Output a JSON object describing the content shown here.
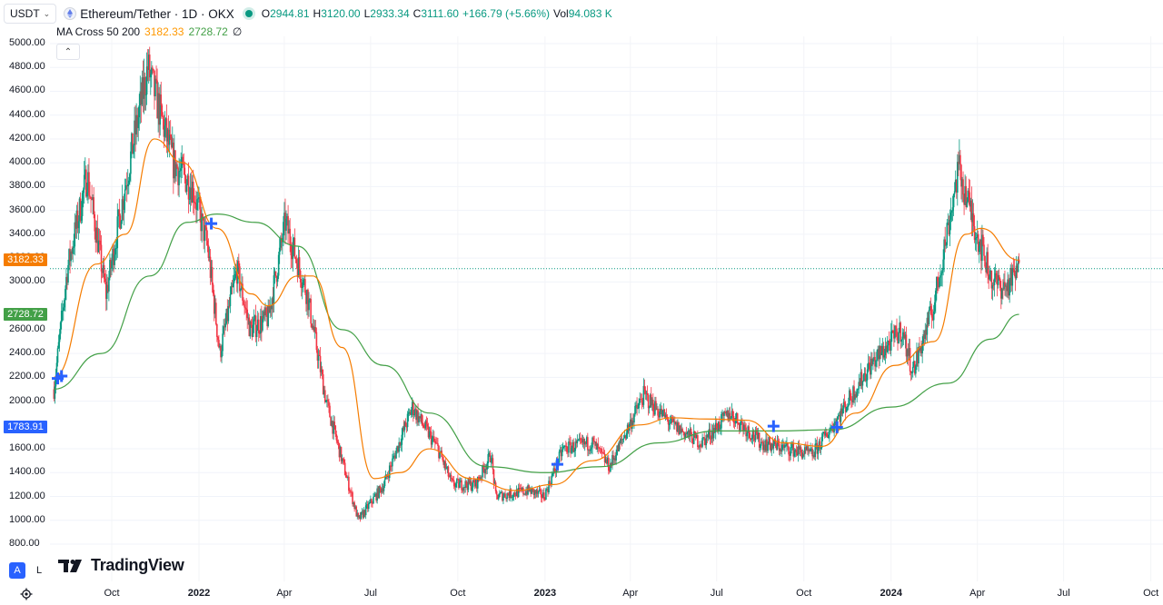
{
  "header": {
    "symbol_select": "USDT",
    "title": "Ethereum/Tether · 1D · OKX",
    "ohlc": [
      {
        "key": "O",
        "value": "2944.81"
      },
      {
        "key": "H",
        "value": "3120.00"
      },
      {
        "key": "L",
        "value": "2933.34"
      },
      {
        "key": "C",
        "value": "3111.60"
      },
      {
        "key": "",
        "value": "+166.79 (+5.66%)"
      },
      {
        "key": "Vol",
        "value": "94.083 K"
      }
    ]
  },
  "indicator": {
    "name": "MA Cross 50 200",
    "ma50": "3182.33",
    "ma200": "2728.72",
    "extra": "∅"
  },
  "y_axis": {
    "labels": [
      "5000.00",
      "4800.00",
      "4600.00",
      "4400.00",
      "4200.00",
      "4000.00",
      "3800.00",
      "3600.00",
      "3400.00",
      "3200.00",
      "3000.00",
      "2600.00",
      "2400.00",
      "2200.00",
      "2000.00",
      "1600.00",
      "1400.00",
      "1200.00",
      "1000.00",
      "800.00"
    ],
    "tags": [
      {
        "value": "3182.33",
        "color": "#f57c00"
      },
      {
        "value": "2728.72",
        "color": "#43a047"
      },
      {
        "value": "1783.91",
        "color": "#2962ff"
      }
    ]
  },
  "x_axis": {
    "labels": [
      {
        "text": "Oct",
        "bold": false
      },
      {
        "text": "2022",
        "bold": true
      },
      {
        "text": "Apr",
        "bold": false
      },
      {
        "text": "Jul",
        "bold": false
      },
      {
        "text": "Oct",
        "bold": false
      },
      {
        "text": "2023",
        "bold": true
      },
      {
        "text": "Apr",
        "bold": false
      },
      {
        "text": "Jul",
        "bold": false
      },
      {
        "text": "Oct",
        "bold": false
      },
      {
        "text": "2024",
        "bold": true
      },
      {
        "text": "Apr",
        "bold": false
      },
      {
        "text": "Jul",
        "bold": false
      },
      {
        "text": "Oct",
        "bold": false
      }
    ]
  },
  "footer": {
    "btn_auto": "A",
    "btn_log": "L",
    "logo_text": "TradingView"
  },
  "colors": {
    "up": "#089981",
    "down": "#f23645",
    "ma50": "#f57c00",
    "ma200": "#43a047",
    "cross": "#2962ff"
  },
  "chart_data": {
    "type": "line",
    "title": "Ethereum/Tether · 1D · OKX",
    "ylim": [
      800,
      5000
    ],
    "price_points": [
      [
        "2021-08-01",
        2100
      ],
      [
        "2021-08-15",
        3100
      ],
      [
        "2021-09-05",
        3900
      ],
      [
        "2021-09-25",
        2900
      ],
      [
        "2021-10-15",
        3800
      ],
      [
        "2021-11-08",
        4800
      ],
      [
        "2021-11-25",
        4300
      ],
      [
        "2021-12-05",
        4000
      ],
      [
        "2021-12-25",
        3800
      ],
      [
        "2022-01-10",
        3300
      ],
      [
        "2022-01-23",
        2400
      ],
      [
        "2022-02-10",
        3100
      ],
      [
        "2022-02-24",
        2600
      ],
      [
        "2022-03-15",
        2700
      ],
      [
        "2022-04-02",
        3500
      ],
      [
        "2022-04-25",
        2900
      ],
      [
        "2022-05-15",
        2000
      ],
      [
        "2022-06-18",
        1000
      ],
      [
        "2022-07-15",
        1300
      ],
      [
        "2022-08-14",
        1950
      ],
      [
        "2022-09-10",
        1600
      ],
      [
        "2022-09-25",
        1300
      ],
      [
        "2022-10-20",
        1300
      ],
      [
        "2022-11-05",
        1550
      ],
      [
        "2022-11-10",
        1200
      ],
      [
        "2022-12-15",
        1250
      ],
      [
        "2022-12-31",
        1200
      ],
      [
        "2023-01-20",
        1600
      ],
      [
        "2023-02-20",
        1650
      ],
      [
        "2023-03-10",
        1450
      ],
      [
        "2023-04-15",
        2050
      ],
      [
        "2023-05-15",
        1800
      ],
      [
        "2023-06-15",
        1650
      ],
      [
        "2023-07-15",
        1900
      ],
      [
        "2023-08-17",
        1650
      ],
      [
        "2023-09-15",
        1600
      ],
      [
        "2023-10-10",
        1550
      ],
      [
        "2023-11-05",
        1850
      ],
      [
        "2023-12-10",
        2300
      ],
      [
        "2024-01-12",
        2600
      ],
      [
        "2024-01-24",
        2250
      ],
      [
        "2024-02-15",
        2800
      ],
      [
        "2024-03-12",
        3950
      ],
      [
        "2024-04-01",
        3400
      ],
      [
        "2024-04-17",
        3000
      ],
      [
        "2024-05-01",
        2950
      ],
      [
        "2024-05-15",
        3110
      ]
    ],
    "ma50_points": [
      [
        "2021-08-01",
        2200
      ],
      [
        "2021-09-15",
        3150
      ],
      [
        "2021-10-15",
        3400
      ],
      [
        "2021-11-15",
        4200
      ],
      [
        "2021-12-15",
        4000
      ],
      [
        "2022-01-20",
        3450
      ],
      [
        "2022-02-25",
        2900
      ],
      [
        "2022-03-15",
        2800
      ],
      [
        "2022-04-15",
        3050
      ],
      [
        "2022-05-01",
        3050
      ],
      [
        "2022-06-01",
        2450
      ],
      [
        "2022-07-05",
        1350
      ],
      [
        "2022-08-01",
        1400
      ],
      [
        "2022-09-01",
        1600
      ],
      [
        "2022-10-15",
        1350
      ],
      [
        "2022-12-01",
        1250
      ],
      [
        "2023-01-10",
        1300
      ],
      [
        "2023-02-20",
        1500
      ],
      [
        "2023-04-10",
        1800
      ],
      [
        "2023-05-15",
        1860
      ],
      [
        "2023-06-20",
        1850
      ],
      [
        "2023-08-01",
        1840
      ],
      [
        "2023-09-10",
        1650
      ],
      [
        "2023-10-20",
        1620
      ],
      [
        "2023-11-25",
        1900
      ],
      [
        "2024-01-05",
        2300
      ],
      [
        "2024-02-15",
        2500
      ],
      [
        "2024-03-20",
        3400
      ],
      [
        "2024-04-05",
        3450
      ],
      [
        "2024-05-15",
        3182
      ]
    ],
    "ma200_points": [
      [
        "2021-08-01",
        2100
      ],
      [
        "2021-09-20",
        2400
      ],
      [
        "2021-11-10",
        3050
      ],
      [
        "2021-12-20",
        3500
      ],
      [
        "2022-01-20",
        3570
      ],
      [
        "2022-03-01",
        3500
      ],
      [
        "2022-04-15",
        3300
      ],
      [
        "2022-06-01",
        2600
      ],
      [
        "2022-07-15",
        2300
      ],
      [
        "2022-09-01",
        1900
      ],
      [
        "2022-11-01",
        1450
      ],
      [
        "2023-01-01",
        1400
      ],
      [
        "2023-03-01",
        1450
      ],
      [
        "2023-05-01",
        1650
      ],
      [
        "2023-07-01",
        1750
      ],
      [
        "2023-09-01",
        1750
      ],
      [
        "2023-11-01",
        1760
      ],
      [
        "2024-01-01",
        1950
      ],
      [
        "2024-03-01",
        2150
      ],
      [
        "2024-04-15",
        2520
      ],
      [
        "2024-05-15",
        2728
      ]
    ],
    "crosses": [
      [
        "2021-08-05",
        2190
      ],
      [
        "2021-08-09",
        2210
      ],
      [
        "2022-01-14",
        3490
      ],
      [
        "2023-01-14",
        1470
      ],
      [
        "2023-08-30",
        1790
      ],
      [
        "2023-11-05",
        1780
      ]
    ],
    "last_price": 3111.6
  }
}
